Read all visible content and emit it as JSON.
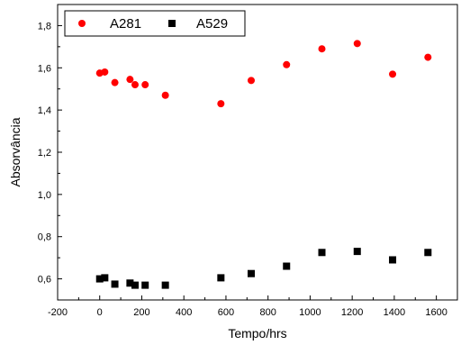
{
  "chart_data": {
    "type": "scatter",
    "xlabel": "Tempo/hrs",
    "ylabel": "Absorvância",
    "xlim": [
      -200,
      1700
    ],
    "ylim": [
      0.5,
      1.9
    ],
    "x_ticks": [
      -200,
      0,
      200,
      400,
      600,
      800,
      1000,
      1200,
      1400,
      1600
    ],
    "x_tick_labels": [
      "-200",
      "0",
      "200",
      "400",
      "600",
      "800",
      "1000",
      "1200",
      "1400",
      "1600"
    ],
    "y_ticks": [
      0.6,
      0.8,
      1.0,
      1.2,
      1.4,
      1.6,
      1.8
    ],
    "y_tick_labels": [
      "0,6",
      "0,8",
      "1,0",
      "1,2",
      "1,4",
      "1,6",
      "1,8"
    ],
    "legend_position": "top-left",
    "grid": false,
    "series": [
      {
        "name": "A281",
        "marker": "circle",
        "color": "#ff0000",
        "x": [
          0,
          24,
          72,
          144,
          168,
          216,
          312,
          576,
          720,
          888,
          1056,
          1224,
          1392,
          1560
        ],
        "y": [
          1.575,
          1.58,
          1.53,
          1.545,
          1.52,
          1.52,
          1.47,
          1.43,
          1.54,
          1.615,
          1.69,
          1.715,
          1.57,
          1.65
        ]
      },
      {
        "name": "A529",
        "marker": "square",
        "color": "#000000",
        "x": [
          0,
          24,
          72,
          144,
          168,
          216,
          312,
          576,
          720,
          888,
          1056,
          1224,
          1392,
          1560
        ],
        "y": [
          0.6,
          0.605,
          0.575,
          0.58,
          0.57,
          0.57,
          0.57,
          0.605,
          0.625,
          0.66,
          0.725,
          0.73,
          0.69,
          0.725
        ]
      }
    ]
  }
}
